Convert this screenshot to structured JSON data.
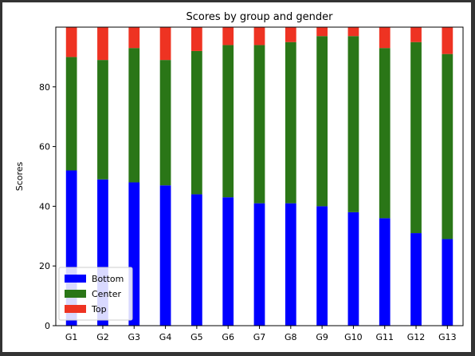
{
  "chart_data": {
    "type": "bar",
    "stacked": true,
    "title": "Scores by group and gender",
    "xlabel": "",
    "ylabel": "Scores",
    "ylim": [
      0,
      100
    ],
    "yticks": [
      0,
      20,
      40,
      60,
      80
    ],
    "categories": [
      "G1",
      "G2",
      "G3",
      "G4",
      "G5",
      "G6",
      "G7",
      "G8",
      "G9",
      "G10",
      "G11",
      "G12",
      "G13"
    ],
    "series": [
      {
        "name": "Bottom",
        "color": "#0000ff",
        "values": [
          52,
          49,
          48,
          47,
          44,
          43,
          41,
          41,
          40,
          38,
          36,
          31,
          29
        ]
      },
      {
        "name": "Center",
        "color": "#2a7617",
        "values": [
          38,
          40,
          45,
          42,
          48,
          51,
          53,
          54,
          57,
          59,
          57,
          64,
          62
        ]
      },
      {
        "name": "Top",
        "color": "#ee3322",
        "values": [
          10,
          11,
          7,
          11,
          8,
          6,
          6,
          5,
          3,
          3,
          7,
          5,
          9
        ]
      }
    ],
    "legend_position": "bottom-left",
    "grid": false
  }
}
